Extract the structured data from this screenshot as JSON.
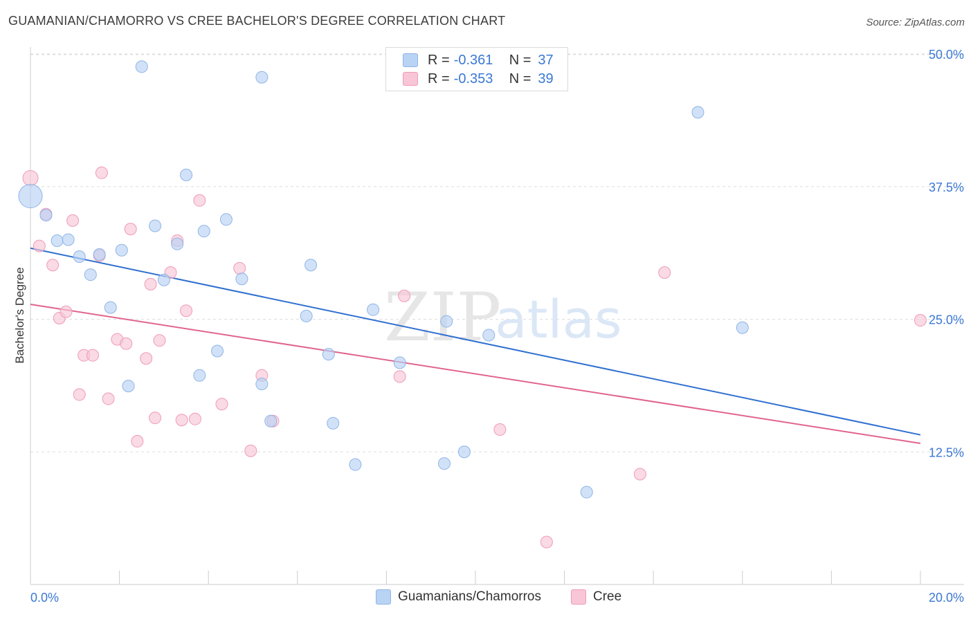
{
  "title": "GUAMANIAN/CHAMORRO VS CREE BACHELOR'S DEGREE CORRELATION CHART",
  "source": "Source: ZipAtlas.com",
  "watermark": {
    "zip": "ZIP",
    "atlas": "atlas"
  },
  "legend": {
    "rows": [
      {
        "r_label": "R =",
        "r_value": "-0.361",
        "n_label": "N =",
        "n_value": "37"
      },
      {
        "r_label": "R =",
        "r_value": "-0.353",
        "n_label": "N =",
        "n_value": "39"
      }
    ]
  },
  "bottom_legend": {
    "series1": "Guamanians/Chamorros",
    "series2": "Cree"
  },
  "colors": {
    "blue_fill": "#b8d3f4",
    "blue_stroke": "#8fb4e6",
    "blue_line": "#2f6fd0",
    "pink_fill": "#f8c6d6",
    "pink_stroke": "#ef9bb6",
    "pink_line": "#e0648e",
    "tick_label": "#3a78d4",
    "grid": "#dddddd"
  },
  "chart_data": {
    "type": "scatter",
    "title": "GUAMANIAN/CHAMORRO VS CREE BACHELOR'S DEGREE CORRELATION CHART",
    "xlabel": "",
    "ylabel": "Bachelor's Degree",
    "xlim": [
      0,
      20
    ],
    "ylim": [
      0,
      50
    ],
    "x_tick_labels": [
      "0.0%",
      "20.0%"
    ],
    "y_ticks": [
      12.5,
      25.0,
      37.5,
      50.0
    ],
    "y_tick_labels": [
      "12.5%",
      "25.0%",
      "37.5%",
      "50.0%"
    ],
    "grid": "horizontal dashed",
    "legend_placement": "top-center",
    "series": [
      {
        "name": "Guamanians/Chamorros",
        "points": [
          [
            0.0,
            36.6,
            3
          ],
          [
            0.35,
            34.8,
            1
          ],
          [
            0.6,
            32.4,
            1
          ],
          [
            0.85,
            32.5,
            1
          ],
          [
            1.1,
            30.9,
            1
          ],
          [
            1.35,
            29.2,
            1
          ],
          [
            1.55,
            31.1,
            1
          ],
          [
            1.8,
            26.1,
            1
          ],
          [
            2.05,
            31.5,
            1
          ],
          [
            2.2,
            18.7,
            1
          ],
          [
            2.5,
            48.8,
            1
          ],
          [
            2.8,
            33.8,
            1
          ],
          [
            3.0,
            28.7,
            1
          ],
          [
            3.3,
            32.1,
            1
          ],
          [
            3.5,
            38.6,
            1
          ],
          [
            3.8,
            19.7,
            1
          ],
          [
            3.9,
            33.3,
            1
          ],
          [
            4.2,
            22.0,
            1
          ],
          [
            4.4,
            34.4,
            1
          ],
          [
            4.75,
            28.8,
            1
          ],
          [
            5.2,
            18.9,
            1
          ],
          [
            5.2,
            47.8,
            1
          ],
          [
            5.4,
            15.4,
            1
          ],
          [
            6.2,
            25.3,
            1
          ],
          [
            6.3,
            30.1,
            1
          ],
          [
            6.7,
            21.7,
            1
          ],
          [
            6.8,
            15.2,
            1
          ],
          [
            7.3,
            11.3,
            1
          ],
          [
            7.7,
            25.9,
            1
          ],
          [
            8.3,
            20.9,
            1
          ],
          [
            9.3,
            11.4,
            1
          ],
          [
            9.35,
            24.8,
            1
          ],
          [
            9.75,
            12.5,
            1
          ],
          [
            10.3,
            23.5,
            1
          ],
          [
            12.5,
            8.7,
            1
          ],
          [
            15.0,
            44.5,
            1
          ],
          [
            16.0,
            24.2,
            1
          ]
        ]
      },
      {
        "name": "Cree",
        "points": [
          [
            0.0,
            38.3,
            2
          ],
          [
            0.2,
            31.9,
            1
          ],
          [
            0.35,
            34.9,
            1
          ],
          [
            0.5,
            30.1,
            1
          ],
          [
            0.65,
            25.1,
            1
          ],
          [
            0.8,
            25.7,
            1
          ],
          [
            0.95,
            34.3,
            1
          ],
          [
            1.1,
            17.9,
            1
          ],
          [
            1.2,
            21.6,
            1
          ],
          [
            1.4,
            21.6,
            1
          ],
          [
            1.55,
            31.0,
            1
          ],
          [
            1.6,
            38.8,
            1
          ],
          [
            1.75,
            17.5,
            1
          ],
          [
            1.95,
            23.1,
            1
          ],
          [
            2.15,
            22.7,
            1
          ],
          [
            2.25,
            33.5,
            1
          ],
          [
            2.4,
            13.5,
            1
          ],
          [
            2.6,
            21.3,
            1
          ],
          [
            2.7,
            28.3,
            1
          ],
          [
            2.8,
            15.7,
            1
          ],
          [
            2.9,
            23.0,
            1
          ],
          [
            3.15,
            29.4,
            1
          ],
          [
            3.3,
            32.4,
            1
          ],
          [
            3.4,
            15.5,
            1
          ],
          [
            3.5,
            25.8,
            1
          ],
          [
            3.7,
            15.6,
            1
          ],
          [
            3.8,
            36.2,
            1
          ],
          [
            4.3,
            17.0,
            1
          ],
          [
            4.7,
            29.8,
            1
          ],
          [
            4.95,
            12.6,
            1
          ],
          [
            5.2,
            19.7,
            1
          ],
          [
            5.45,
            15.4,
            1
          ],
          [
            8.3,
            19.6,
            1
          ],
          [
            8.4,
            27.2,
            1
          ],
          [
            10.55,
            14.6,
            1
          ],
          [
            11.6,
            4.0,
            1
          ],
          [
            13.7,
            10.4,
            1
          ],
          [
            14.25,
            29.4,
            1
          ],
          [
            20.0,
            24.9,
            1
          ]
        ]
      }
    ],
    "trend_lines": [
      {
        "series": "Guamanians/Chamorros",
        "x": [
          0,
          20
        ],
        "y": [
          31.7,
          14.1
        ]
      },
      {
        "series": "Cree",
        "x": [
          0,
          20
        ],
        "y": [
          26.4,
          13.3
        ]
      }
    ]
  }
}
